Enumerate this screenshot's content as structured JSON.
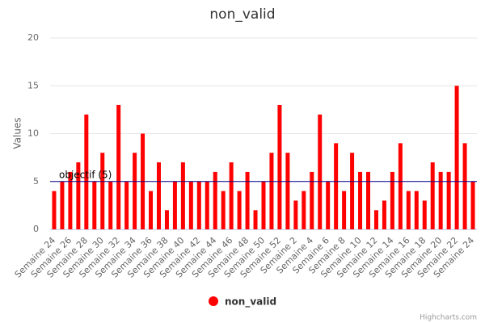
{
  "chart_data": {
    "type": "bar",
    "title": "non_valid",
    "y_label": "Values",
    "categories": [
      "Semaine 24",
      null,
      "Semaine 26",
      null,
      "Semaine 28",
      null,
      "Semaine 30",
      null,
      "Semaine 32",
      null,
      "Semaine 34",
      null,
      "Semaine 36",
      null,
      "Semaine 38",
      null,
      "Semaine 40",
      null,
      "Semaine 42",
      null,
      "Semaine 44",
      null,
      "Semaine 46",
      null,
      "Semaine 48",
      null,
      "Semaine 50",
      null,
      "Semaine 52",
      null,
      "Semaine 2",
      null,
      "Semaine 4",
      null,
      "Semaine 6",
      null,
      "Semaine 8",
      null,
      "Semaine 10",
      null,
      "Semaine 12",
      null,
      "Semaine 14",
      null,
      "Semaine 16",
      null,
      "Semaine 18",
      null,
      "Semaine 20",
      null,
      "Semaine 22",
      null,
      "Semaine 24"
    ],
    "series": [
      {
        "name": "non_valid",
        "color": "#ff0000",
        "values": [
          4,
          5,
          6,
          7,
          12,
          5,
          8,
          5,
          13,
          5,
          8,
          10,
          4,
          7,
          2,
          5,
          7,
          5,
          5,
          5,
          6,
          4,
          7,
          4,
          6,
          2,
          5,
          8,
          13,
          8,
          3,
          4,
          6,
          12,
          5,
          9,
          4,
          8,
          6,
          6,
          2,
          3,
          6,
          9,
          4,
          4,
          3,
          7,
          6,
          6,
          15,
          9,
          5
        ]
      }
    ],
    "ylim": [
      0,
      20
    ],
    "yticks": [
      0,
      5,
      10,
      15,
      20
    ],
    "grid": true,
    "plot_lines": [
      {
        "value": 5,
        "label": "objectif (5)",
        "color": "#00008b"
      }
    ],
    "legend": "bottom",
    "credits": "Highcharts.com"
  }
}
